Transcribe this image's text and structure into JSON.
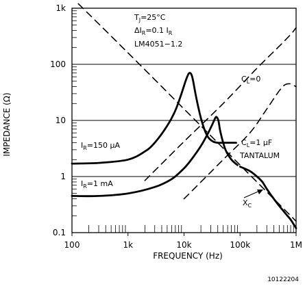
{
  "chart_data": {
    "type": "line",
    "title": "",
    "xlabel": "FREQUENCY (Hz)",
    "ylabel": "IMPEDANCE (Ω)",
    "x_scale": "log",
    "y_scale": "log",
    "xlim": [
      100,
      1000000
    ],
    "ylim": [
      0.1,
      1000
    ],
    "x_ticks": [
      100,
      1000,
      10000,
      100000,
      1000000
    ],
    "x_tick_labels": [
      "100",
      "1k",
      "10k",
      "100k",
      "1M"
    ],
    "y_ticks": [
      0.1,
      1,
      10,
      100,
      1000
    ],
    "y_tick_labels": [
      "0.1",
      "1",
      "10",
      "100",
      "1k"
    ],
    "grid": false,
    "colors": {
      "line": "#000000",
      "background": "#ffffff"
    },
    "conditions": [
      "T",
      "J",
      "=25°C",
      "ΔI",
      "R",
      "=0.1 I",
      "R",
      "LM4051−1.2"
    ],
    "series": [
      {
        "name": "I_R=150 µA, C_L=0",
        "style": "solid",
        "x": [
          100,
          300,
          1000,
          2000,
          3000,
          5000,
          7000,
          9000,
          11000,
          12500,
          14000,
          16000,
          18000,
          20000,
          23000,
          27000,
          33000,
          40000,
          50000,
          65000,
          85000
        ],
        "y": [
          1.7,
          1.75,
          2.0,
          2.8,
          4.0,
          8.0,
          15.0,
          30.0,
          55.0,
          70.0,
          60.0,
          30.0,
          17.0,
          11.0,
          7.0,
          5.0,
          4.2,
          4.0,
          4.0,
          4.0,
          4.0
        ]
      },
      {
        "name": "I_R=150 µA, C_L=1 µF TANTALUM",
        "style": "solid",
        "x": [
          100000,
          150000,
          200000,
          250000,
          300000,
          400000,
          500000,
          600000,
          700000,
          800000,
          1000000
        ],
        "y": [
          1.5,
          1.25,
          1.0,
          0.8,
          0.6,
          0.4,
          0.3,
          0.24,
          0.2,
          0.17,
          0.12
        ]
      },
      {
        "name": "I_R=1 mA",
        "style": "solid",
        "x": [
          100,
          300,
          1000,
          3000,
          6000,
          10000,
          14000,
          20000,
          27000,
          32000,
          36000,
          38000,
          41000,
          45000,
          55000,
          70000,
          90000
        ],
        "y": [
          0.45,
          0.45,
          0.5,
          0.65,
          0.9,
          1.4,
          2.1,
          3.5,
          6.0,
          8.5,
          11.0,
          11.5,
          10.0,
          6.0,
          3.0,
          2.0,
          1.6
        ]
      },
      {
        "name": "C_L=0",
        "style": "dashed",
        "x": [
          2000,
          10000,
          50000,
          200000,
          500000,
          800000,
          1000000
        ],
        "y": [
          0.85,
          4.2,
          20.0,
          85.0,
          210.0,
          340.0,
          450.0
        ]
      },
      {
        "name": "C_L=1 µF",
        "style": "dashed",
        "x": [
          10000,
          50000,
          150000,
          300000,
          550000,
          750000,
          1000000
        ],
        "y": [
          0.4,
          2.0,
          6.0,
          16.0,
          38.0,
          45.0,
          40.0
        ]
      },
      {
        "name": "X_C",
        "style": "dashed",
        "x": [
          130,
          1000,
          10000,
          100000,
          1000000
        ],
        "y": [
          1200,
          160,
          16,
          1.6,
          0.16
        ]
      }
    ],
    "annotations": {
      "ir150": [
        "I",
        "R",
        "=150 µA"
      ],
      "ir1ma": [
        "I",
        "R",
        "=1 mA"
      ],
      "cl0": [
        "C",
        "L",
        "=0"
      ],
      "cl1": [
        "C",
        "L",
        "=1 µF"
      ],
      "tantalum": "TANTALUM",
      "xc": [
        "X",
        "C"
      ]
    }
  },
  "figure_id": "10122204"
}
